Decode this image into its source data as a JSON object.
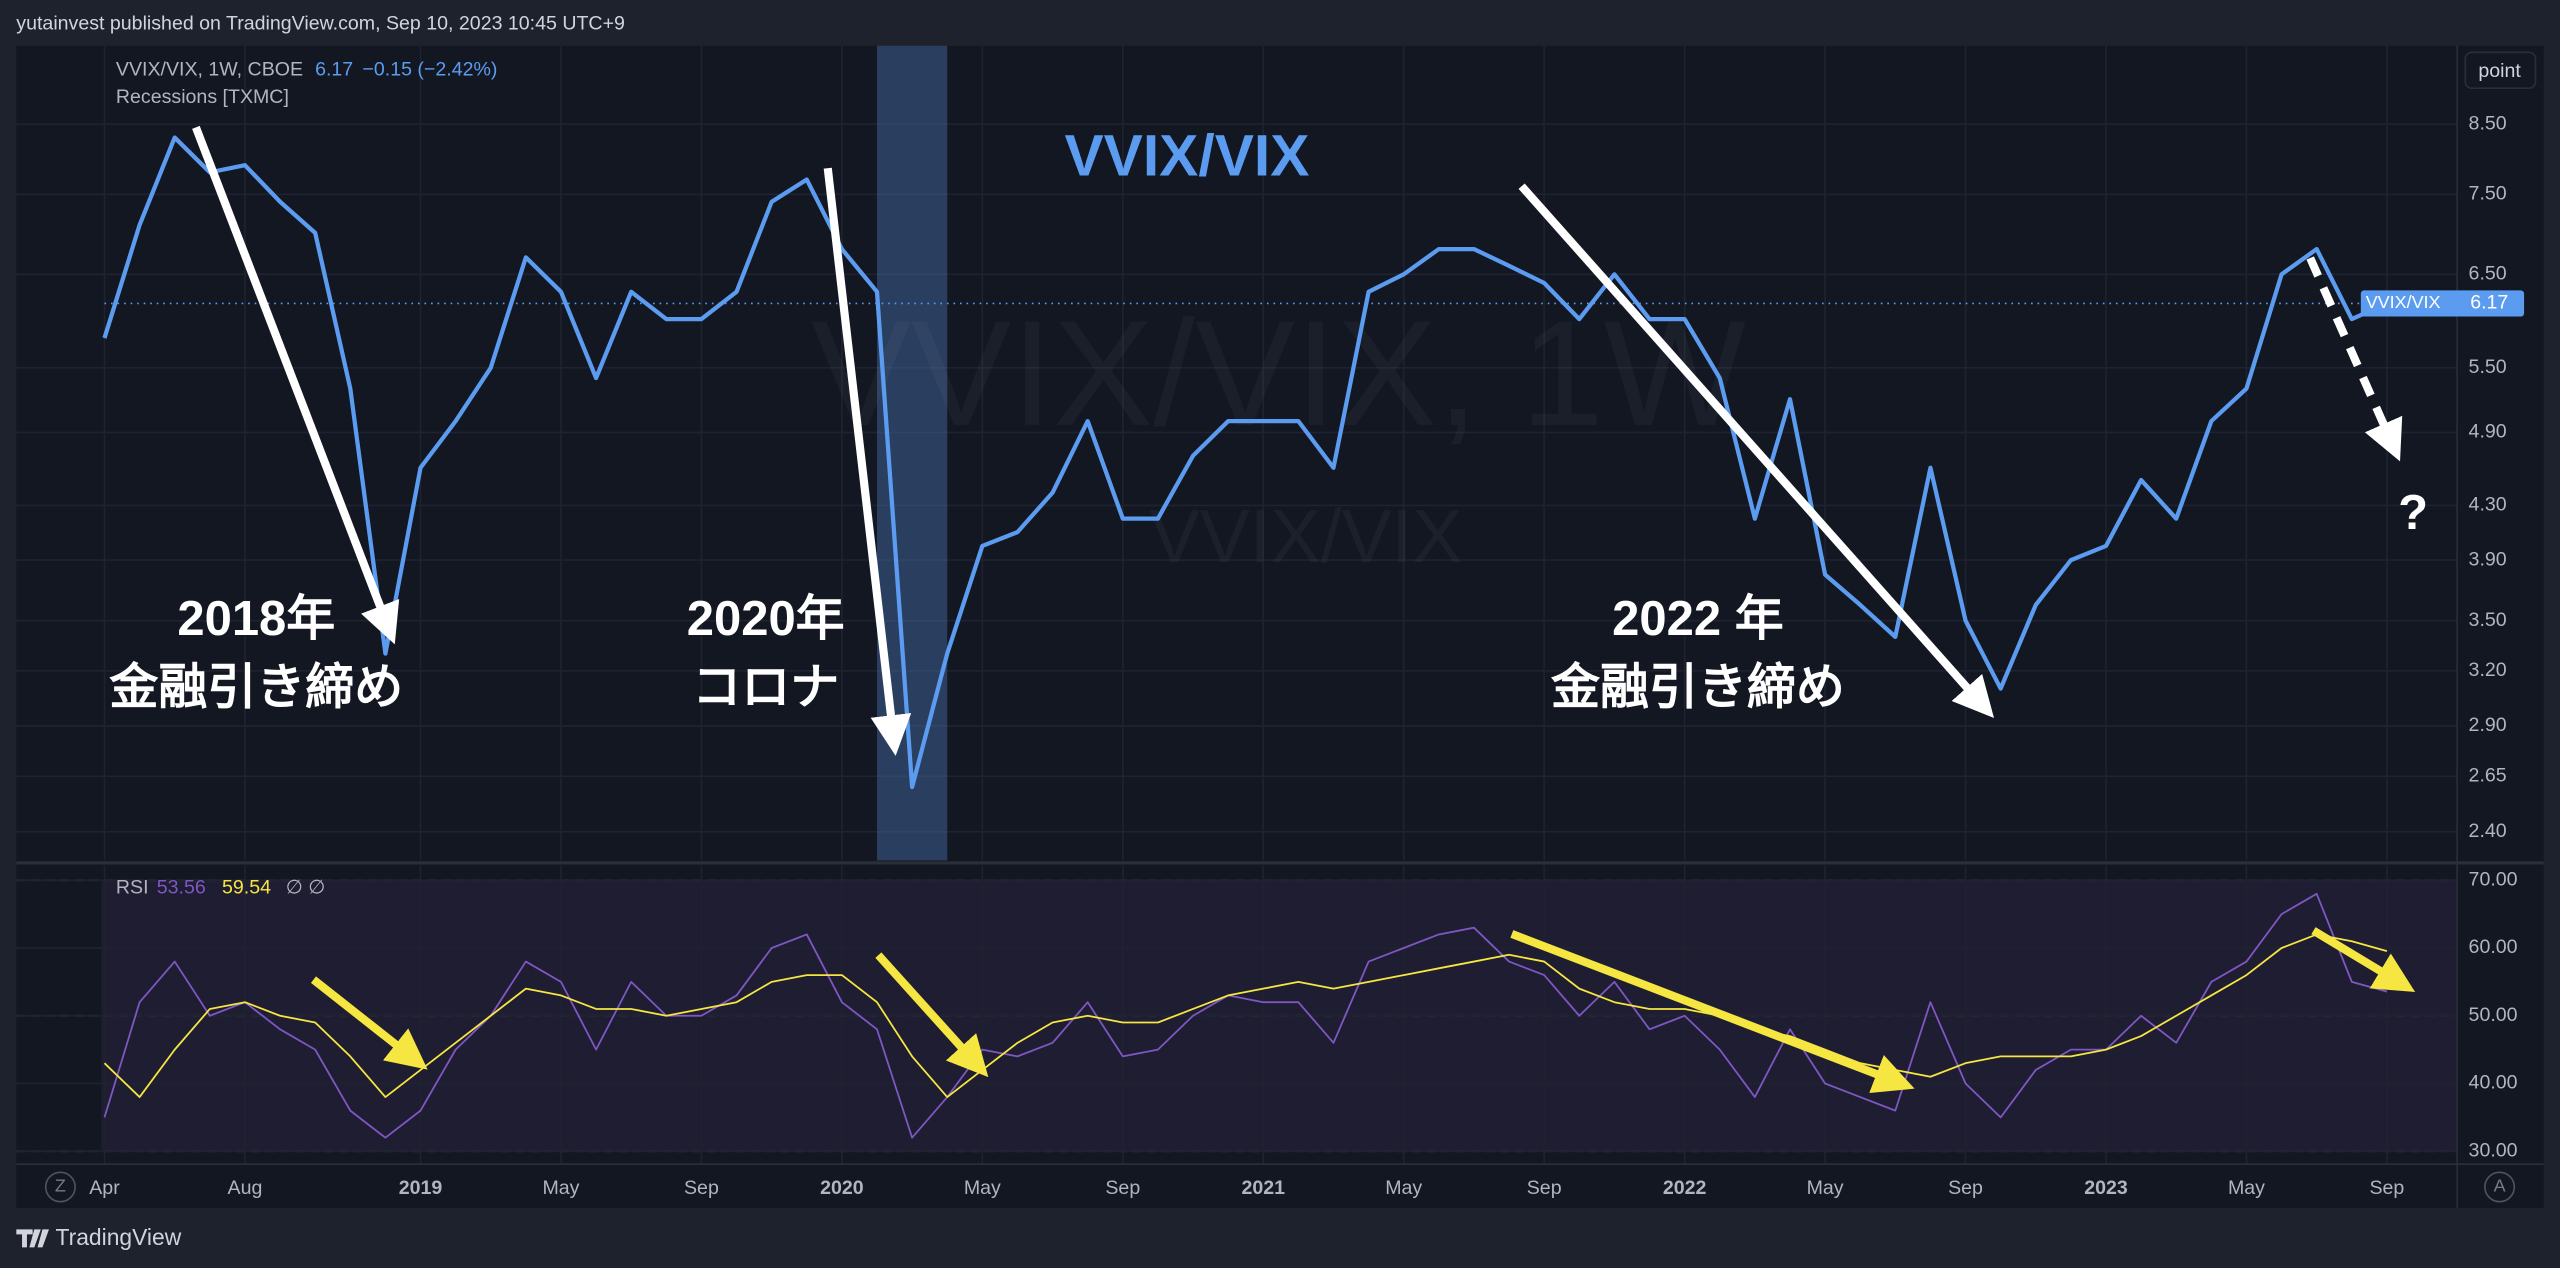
{
  "page": {
    "published": "yutainvest published on TradingView.com, Sep 10, 2023 10:45 UTC+9",
    "brand": "TradingView",
    "button": "point",
    "left_button": "Z",
    "right_button": "A"
  },
  "chart_data": [
    {
      "type": "line",
      "title": "VVIX/VIX",
      "legend_title": "VVIX/VIX, 1W, CBOE",
      "last": 6.17,
      "change": "−0.15 (−2.42%)",
      "overlay": "Recessions [TXMC]",
      "watermark": "VVIX/VIX, 1W",
      "watermark_sub": "VVIX/VIX",
      "annotations": [
        "2018年",
        "金融引き締め",
        "2020年",
        "コロナ",
        "2022 年",
        "金融引き締め",
        "?"
      ],
      "recession": {
        "start": "2020-02",
        "end": "2020-04"
      },
      "log_scale": true,
      "grid": true,
      "x": [
        "2018-04",
        "2018-05",
        "2018-06",
        "2018-07",
        "2018-08",
        "2018-09",
        "2018-10",
        "2018-11",
        "2018-12",
        "2019-01",
        "2019-02",
        "2019-03",
        "2019-04",
        "2019-05",
        "2019-06",
        "2019-07",
        "2019-08",
        "2019-09",
        "2019-10",
        "2019-11",
        "2019-12",
        "2020-01",
        "2020-02",
        "2020-03",
        "2020-04",
        "2020-05",
        "2020-06",
        "2020-07",
        "2020-08",
        "2020-09",
        "2020-10",
        "2020-11",
        "2020-12",
        "2021-01",
        "2021-02",
        "2021-03",
        "2021-04",
        "2021-05",
        "2021-06",
        "2021-07",
        "2021-08",
        "2021-09",
        "2021-10",
        "2021-11",
        "2021-12",
        "2022-01",
        "2022-02",
        "2022-03",
        "2022-04",
        "2022-05",
        "2022-06",
        "2022-07",
        "2022-08",
        "2022-09",
        "2022-10",
        "2022-11",
        "2022-12",
        "2023-01",
        "2023-02",
        "2023-03",
        "2023-04",
        "2023-05",
        "2023-06",
        "2023-07",
        "2023-08",
        "2023-09"
      ],
      "series": [
        {
          "name": "VVIX/VIX",
          "color": "#5b9cf0",
          "values": [
            5.8,
            7.1,
            8.3,
            7.8,
            7.9,
            7.4,
            7.0,
            5.3,
            3.3,
            4.6,
            5.0,
            5.5,
            6.7,
            6.3,
            5.4,
            6.3,
            6.0,
            6.0,
            6.3,
            7.4,
            7.7,
            6.8,
            6.3,
            2.6,
            3.3,
            4.0,
            4.1,
            4.4,
            5.0,
            4.2,
            4.2,
            4.7,
            5.0,
            5.0,
            5.0,
            4.6,
            6.3,
            6.5,
            6.8,
            6.8,
            6.6,
            6.4,
            6.0,
            6.5,
            6.0,
            6.0,
            5.4,
            4.2,
            5.2,
            3.8,
            3.6,
            3.4,
            4.6,
            3.5,
            3.1,
            3.6,
            3.9,
            4.0,
            4.5,
            4.2,
            5.0,
            5.3,
            6.5,
            6.8,
            6.0,
            6.17
          ]
        }
      ],
      "xlim": [
        "2018-04",
        "2023-11"
      ],
      "ylim": [
        2.28,
        9.78
      ],
      "yticks": [
        {
          "value": 8.5,
          "label": "8.50"
        },
        {
          "value": 7.5,
          "label": "7.50"
        },
        {
          "value": 6.5,
          "label": "6.50"
        },
        {
          "value": 5.5,
          "label": "5.50"
        },
        {
          "value": 4.9,
          "label": "4.90"
        },
        {
          "value": 4.3,
          "label": "4.30"
        },
        {
          "value": 3.9,
          "label": "3.90"
        },
        {
          "value": 3.5,
          "label": "3.50"
        },
        {
          "value": 3.2,
          "label": "3.20"
        },
        {
          "value": 2.9,
          "label": "2.90"
        },
        {
          "value": 2.65,
          "label": "2.65"
        },
        {
          "value": 2.4,
          "label": "2.40"
        }
      ]
    },
    {
      "type": "line",
      "legend_title": "RSI",
      "last_values": [
        53.56,
        59.54
      ],
      "legend_extra": "∅ ∅",
      "grid": true,
      "levels": [
        70,
        50,
        30
      ],
      "x": [
        "2018-04",
        "2018-05",
        "2018-06",
        "2018-07",
        "2018-08",
        "2018-09",
        "2018-10",
        "2018-11",
        "2018-12",
        "2019-01",
        "2019-02",
        "2019-03",
        "2019-04",
        "2019-05",
        "2019-06",
        "2019-07",
        "2019-08",
        "2019-09",
        "2019-10",
        "2019-11",
        "2019-12",
        "2020-01",
        "2020-02",
        "2020-03",
        "2020-04",
        "2020-05",
        "2020-06",
        "2020-07",
        "2020-08",
        "2020-09",
        "2020-10",
        "2020-11",
        "2020-12",
        "2021-01",
        "2021-02",
        "2021-03",
        "2021-04",
        "2021-05",
        "2021-06",
        "2021-07",
        "2021-08",
        "2021-09",
        "2021-10",
        "2021-11",
        "2021-12",
        "2022-01",
        "2022-02",
        "2022-03",
        "2022-04",
        "2022-05",
        "2022-06",
        "2022-07",
        "2022-08",
        "2022-09",
        "2022-10",
        "2022-11",
        "2022-12",
        "2023-01",
        "2023-02",
        "2023-03",
        "2023-04",
        "2023-05",
        "2023-06",
        "2023-07",
        "2023-08",
        "2023-09"
      ],
      "series": [
        {
          "name": "RSI",
          "color": "#7e57c2",
          "values": [
            35,
            52,
            58,
            50,
            52,
            48,
            45,
            36,
            32,
            36,
            45,
            50,
            58,
            55,
            45,
            55,
            50,
            50,
            53,
            60,
            62,
            52,
            48,
            32,
            38,
            45,
            44,
            46,
            52,
            44,
            45,
            50,
            53,
            52,
            52,
            46,
            58,
            60,
            62,
            63,
            58,
            56,
            50,
            55,
            48,
            50,
            45,
            38,
            48,
            40,
            38,
            36,
            52,
            40,
            35,
            42,
            45,
            45,
            50,
            46,
            55,
            58,
            65,
            68,
            55,
            53.56
          ]
        },
        {
          "color": "#f5e642",
          "values": [
            43,
            38,
            45,
            51,
            52,
            50,
            49,
            44,
            38,
            42,
            46,
            50,
            54,
            53,
            51,
            51,
            50,
            51,
            52,
            55,
            56,
            56,
            52,
            44,
            38,
            42,
            46,
            49,
            50,
            49,
            49,
            51,
            53,
            54,
            55,
            54,
            55,
            56,
            57,
            58,
            59,
            58,
            54,
            52,
            51,
            51,
            50,
            48,
            47,
            45,
            43,
            42,
            41,
            43,
            44,
            44,
            44,
            45,
            47,
            50,
            53,
            56,
            60,
            62,
            61,
            59.54
          ]
        }
      ],
      "xlim": [
        "2018-04",
        "2023-11"
      ],
      "ylim": [
        28.1,
        72.2
      ],
      "yticks": [
        {
          "value": 70,
          "label": "70.00"
        },
        {
          "value": 60,
          "label": "60.00"
        },
        {
          "value": 50,
          "label": "50.00"
        },
        {
          "value": 40,
          "label": "40.00"
        },
        {
          "value": 30,
          "label": "30.00"
        }
      ],
      "xticks": [
        {
          "value": "2018-04",
          "label": "Apr"
        },
        {
          "value": "2018-08",
          "label": "Aug"
        },
        {
          "value": "2019-01",
          "label": "2019"
        },
        {
          "value": "2019-05",
          "label": "May"
        },
        {
          "value": "2019-09",
          "label": "Sep"
        },
        {
          "value": "2020-01",
          "label": "2020"
        },
        {
          "value": "2020-05",
          "label": "May"
        },
        {
          "value": "2020-09",
          "label": "Sep"
        },
        {
          "value": "2021-01",
          "label": "2021"
        },
        {
          "value": "2021-05",
          "label": "May"
        },
        {
          "value": "2021-09",
          "label": "Sep"
        },
        {
          "value": "2022-01",
          "label": "2022"
        },
        {
          "value": "2022-05",
          "label": "May"
        },
        {
          "value": "2022-09",
          "label": "Sep"
        },
        {
          "value": "2023-01",
          "label": "2023"
        },
        {
          "value": "2023-05",
          "label": "May"
        },
        {
          "value": "2023-09",
          "label": "Sep"
        }
      ]
    }
  ]
}
